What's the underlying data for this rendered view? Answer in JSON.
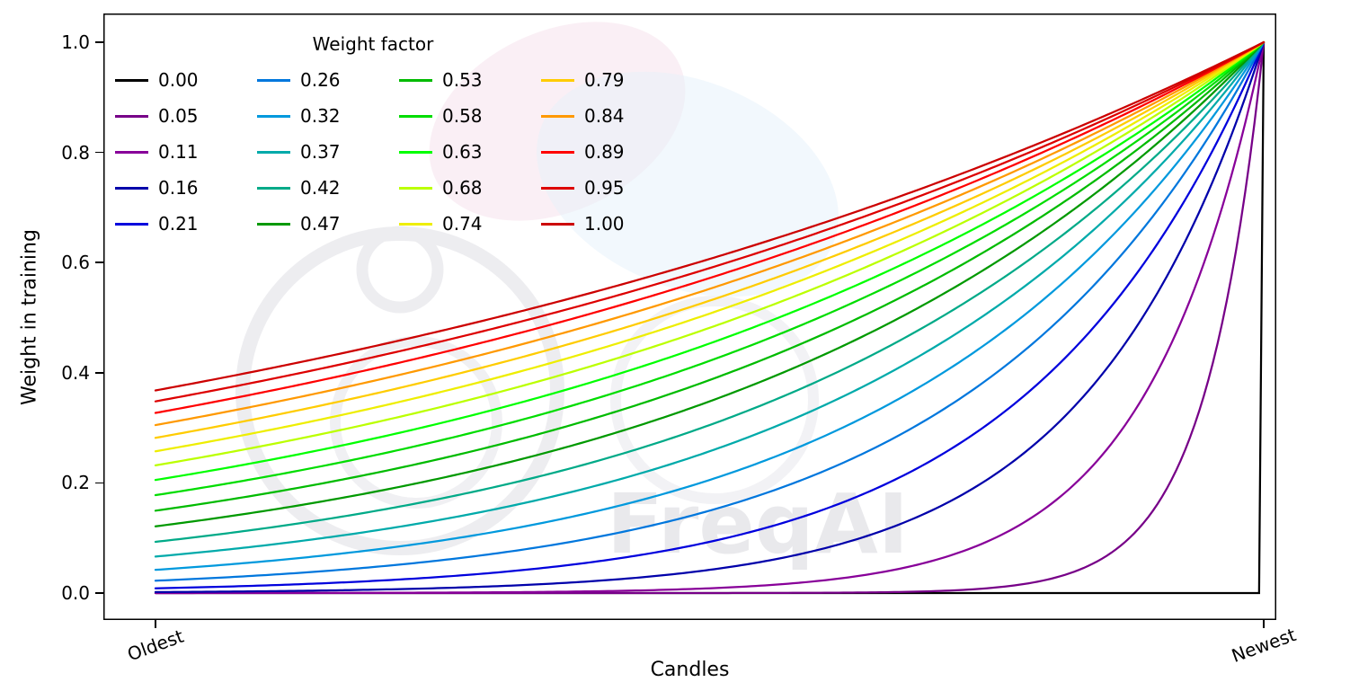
{
  "watermark": {
    "text": "FreqAI"
  },
  "chart_data": {
    "type": "line",
    "title": "",
    "xlabel": "Candles",
    "ylabel": "Weight in training",
    "x_tick_labels": [
      "Oldest",
      "Newest"
    ],
    "y_ticks": [
      0.0,
      0.2,
      0.4,
      0.6,
      0.8,
      1.0
    ],
    "xlim_data": [
      0,
      1
    ],
    "ylim": [
      -0.05,
      1.05
    ],
    "grid": false,
    "legend": {
      "title": "Weight factor",
      "position": "upper-left",
      "columns": 4,
      "order": "column-major"
    },
    "curve_formula": "weight(x) = exp(-(1 - x) / factor), x in [0,1] from oldest to newest candle; factor=0 gives weight 0 everywhere except 1 at the newest candle; all curves converge to 1.0 at Newest",
    "series": [
      {
        "label": "0.00",
        "factor": 0.0,
        "color": "#000000",
        "weight_at_oldest": 0.0
      },
      {
        "label": "0.05",
        "factor": 0.0526,
        "color": "#770088",
        "weight_at_oldest": 0.0
      },
      {
        "label": "0.11",
        "factor": 0.1053,
        "color": "#880099",
        "weight_at_oldest": 0.0001
      },
      {
        "label": "0.16",
        "factor": 0.1579,
        "color": "#0000AA",
        "weight_at_oldest": 0.0018
      },
      {
        "label": "0.21",
        "factor": 0.2105,
        "color": "#0000DD",
        "weight_at_oldest": 0.0087
      },
      {
        "label": "0.26",
        "factor": 0.2632,
        "color": "#0077DD",
        "weight_at_oldest": 0.0224
      },
      {
        "label": "0.32",
        "factor": 0.3158,
        "color": "#0099DD",
        "weight_at_oldest": 0.0421
      },
      {
        "label": "0.37",
        "factor": 0.3684,
        "color": "#00AAAA",
        "weight_at_oldest": 0.0662
      },
      {
        "label": "0.42",
        "factor": 0.4211,
        "color": "#00AA88",
        "weight_at_oldest": 0.0932
      },
      {
        "label": "0.47",
        "factor": 0.4737,
        "color": "#009900",
        "weight_at_oldest": 0.121
      },
      {
        "label": "0.53",
        "factor": 0.5263,
        "color": "#00BB00",
        "weight_at_oldest": 0.15
      },
      {
        "label": "0.58",
        "factor": 0.5789,
        "color": "#00DD00",
        "weight_at_oldest": 0.178
      },
      {
        "label": "0.63",
        "factor": 0.6316,
        "color": "#00FF00",
        "weight_at_oldest": 0.206
      },
      {
        "label": "0.68",
        "factor": 0.6842,
        "color": "#BBFF00",
        "weight_at_oldest": 0.232
      },
      {
        "label": "0.74",
        "factor": 0.7368,
        "color": "#EEEE00",
        "weight_at_oldest": 0.257
      },
      {
        "label": "0.79",
        "factor": 0.7895,
        "color": "#FFCC00",
        "weight_at_oldest": 0.282
      },
      {
        "label": "0.84",
        "factor": 0.8421,
        "color": "#FF9900",
        "weight_at_oldest": 0.305
      },
      {
        "label": "0.89",
        "factor": 0.8947,
        "color": "#FF0000",
        "weight_at_oldest": 0.327
      },
      {
        "label": "0.95",
        "factor": 0.9474,
        "color": "#DD0000",
        "weight_at_oldest": 0.348
      },
      {
        "label": "1.00",
        "factor": 1.0,
        "color": "#CC0000",
        "weight_at_oldest": 0.368
      }
    ]
  }
}
